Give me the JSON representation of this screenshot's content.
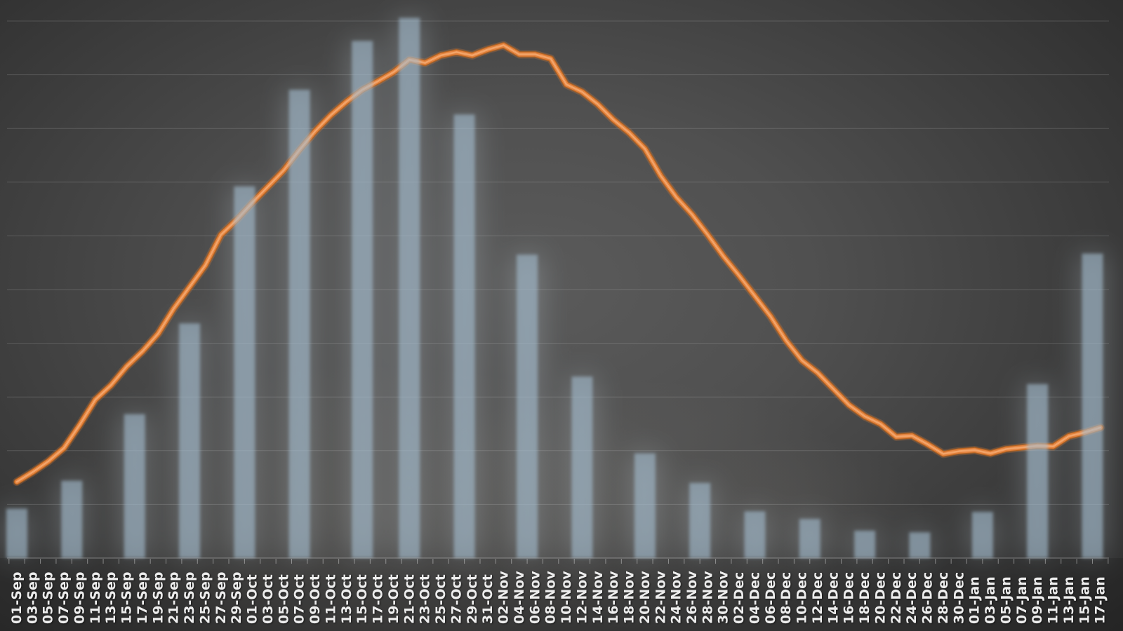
{
  "chart_data": {
    "type": "combo-bar-line",
    "title": "",
    "description": "Dark-themed chart: semi-transparent blue-gray weekly bars with a smooth orange daily line, x-axis dated 01-Sep through 17-Jan, no visible y-axis labels",
    "value_scale": "gridline-units (y-axis tick labels are not visible; 1.0 = one horizontal gridline interval)",
    "x_axis": {
      "tick_label_step_days": 2,
      "day_span": [
        0,
        138
      ],
      "labels": [
        "01-Sep",
        "03-Sep",
        "05-Sep",
        "07-Sep",
        "09-Sep",
        "11-Sep",
        "13-Sep",
        "15-Sep",
        "17-Sep",
        "19-Sep",
        "21-Sep",
        "23-Sep",
        "25-Sep",
        "27-Sep",
        "29-Sep",
        "01-Oct",
        "03-Oct",
        "05-Oct",
        "07-Oct",
        "09-Oct",
        "11-Oct",
        "13-Oct",
        "15-Oct",
        "17-Oct",
        "19-Oct",
        "21-Oct",
        "23-Oct",
        "25-Oct",
        "27-Oct",
        "29-Oct",
        "31-Oct",
        "02-Nov",
        "04-Nov",
        "06-Nov",
        "08-Nov",
        "10-Nov",
        "12-Nov",
        "14-Nov",
        "16-Nov",
        "18-Nov",
        "20-Nov",
        "22-Nov",
        "24-Nov",
        "26-Nov",
        "28-Nov",
        "30-Nov",
        "02-Dec",
        "04-Dec",
        "06-Dec",
        "08-Dec",
        "10-Dec",
        "12-Dec",
        "14-Dec",
        "16-Dec",
        "18-Dec",
        "20-Dec",
        "22-Dec",
        "24-Dec",
        "26-Dec",
        "28-Dec",
        "30-Dec",
        "01-Jan",
        "03-Jan",
        "05-Jan",
        "07-Jan",
        "09-Jan",
        "11-Jan",
        "13-Jan",
        "15-Jan",
        "17-Jan"
      ]
    },
    "y_axis": {
      "labels_visible": false,
      "gridline_count": 10,
      "ylim": [
        0,
        10.5
      ],
      "grid_on": true
    },
    "legend": {
      "visible": false
    },
    "series": [
      {
        "name": "weekly-bars",
        "type": "bar",
        "categories": [
          "01-Sep",
          "08-Sep",
          "16-Sep",
          "23-Sep",
          "30-Sep",
          "07-Oct",
          "15-Oct",
          "21-Oct",
          "28-Oct",
          "05-Nov",
          "12-Nov",
          "20-Nov",
          "27-Nov",
          "04-Dec",
          "11-Dec",
          "18-Dec",
          "25-Dec",
          "02-Jan",
          "09-Jan",
          "16-Jan"
        ],
        "day_index": [
          0,
          7,
          15,
          22,
          29,
          36,
          44,
          50,
          57,
          65,
          72,
          80,
          87,
          94,
          101,
          108,
          115,
          123,
          130,
          137
        ],
        "values": [
          0.92,
          1.44,
          2.68,
          4.37,
          6.92,
          8.72,
          9.63,
          10.06,
          8.26,
          5.65,
          3.38,
          1.95,
          1.4,
          0.87,
          0.73,
          0.51,
          0.48,
          0.86,
          3.24,
          5.67
        ]
      },
      {
        "name": "daily-line",
        "type": "line",
        "day_index": [
          0,
          2,
          4,
          6,
          8,
          10,
          12,
          14,
          16,
          18,
          20,
          22,
          24,
          26,
          28,
          30,
          32,
          34,
          36,
          38,
          40,
          42,
          44,
          46,
          48,
          50,
          52,
          54,
          56,
          58,
          60,
          62,
          64,
          66,
          68,
          70,
          72,
          74,
          76,
          78,
          80,
          82,
          84,
          86,
          88,
          90,
          92,
          94,
          96,
          98,
          100,
          102,
          104,
          106,
          108,
          110,
          112,
          114,
          116,
          118,
          120,
          122,
          124,
          126,
          128,
          130,
          132,
          134,
          136,
          138
        ],
        "values": [
          1.42,
          1.6,
          1.8,
          2.05,
          2.48,
          2.95,
          3.22,
          3.57,
          3.85,
          4.18,
          4.65,
          5.05,
          5.45,
          6.02,
          6.3,
          6.62,
          6.92,
          7.22,
          7.6,
          7.95,
          8.25,
          8.5,
          8.72,
          8.88,
          9.05,
          9.28,
          9.22,
          9.36,
          9.42,
          9.36,
          9.47,
          9.55,
          9.38,
          9.38,
          9.3,
          8.82,
          8.68,
          8.45,
          8.16,
          7.92,
          7.62,
          7.12,
          6.72,
          6.4,
          6.02,
          5.62,
          5.26,
          4.88,
          4.5,
          4.05,
          3.68,
          3.45,
          3.15,
          2.85,
          2.64,
          2.5,
          2.26,
          2.28,
          2.12,
          1.94,
          1.99,
          2.01,
          1.95,
          2.03,
          2.06,
          2.09,
          2.08,
          2.27,
          2.34,
          2.43
        ]
      }
    ],
    "colors": {
      "bar_fill": "rgba(163,188,207,0.60)",
      "bar_glow": "rgba(205,218,228,0.50)",
      "line_core": "#e2823e",
      "line_dark_edge": "#b2621f",
      "line_highlight": "#f2a469",
      "line_soft_glow": "rgba(224,129,60,0.25)",
      "gridline": "rgba(255,255,255,0.15)",
      "axis_line": "rgba(255,255,255,0.28)",
      "tick": "rgba(255,255,255,0.40)",
      "x_label_text": "#ededed",
      "background_center": "#5b5b5b",
      "background_corner": "#2b2b2b"
    }
  }
}
